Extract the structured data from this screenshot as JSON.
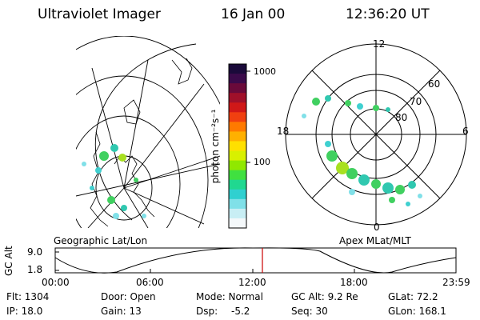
{
  "header": {
    "title": "Ultraviolet Imager",
    "date": "16 Jan 00",
    "time": "12:36:20 UT"
  },
  "colorbar": {
    "unit": "photon cm⁻²s⁻¹",
    "ticks": [
      "1000",
      "100"
    ],
    "colors": [
      "#1a0a3a",
      "#3a0a4a",
      "#6a0a3a",
      "#a0102a",
      "#d01818",
      "#f04010",
      "#ff7a00",
      "#ffb000",
      "#ffe000",
      "#d8f000",
      "#90e800",
      "#40e040",
      "#20d890",
      "#30d0d0",
      "#80e0e8",
      "#c8eef4",
      "#f4f8fa"
    ]
  },
  "left_panel": {
    "caption": "Geographic Lat/Lon"
  },
  "right_panel": {
    "caption": "Apex MLat/MLT",
    "mlt_labels": {
      "top": "12",
      "left": "18",
      "right": "6",
      "bottom": "0"
    },
    "lat_labels": [
      "60",
      "70",
      "80"
    ]
  },
  "timeline": {
    "y_axis_title": "GC Alt",
    "y_ticks": [
      "9.0",
      "1.8"
    ],
    "x_ticks": [
      "00:00",
      "06:00",
      "12:00",
      "18:00",
      "23:59"
    ],
    "marker_color": "#cc0000"
  },
  "info": {
    "flt": "Flt: 1304",
    "ip": "IP: 18.0",
    "door": "Door: Open",
    "gain": "Gain: 13",
    "mode": "Mode: Normal",
    "dsp_label": "Dsp:",
    "dsp_value": "-5.2",
    "gc_alt": "GC Alt: 9.2 Re",
    "seq": "Seq: 30",
    "glat": "GLat: 72.2",
    "glon": "GLon: 168.1"
  }
}
